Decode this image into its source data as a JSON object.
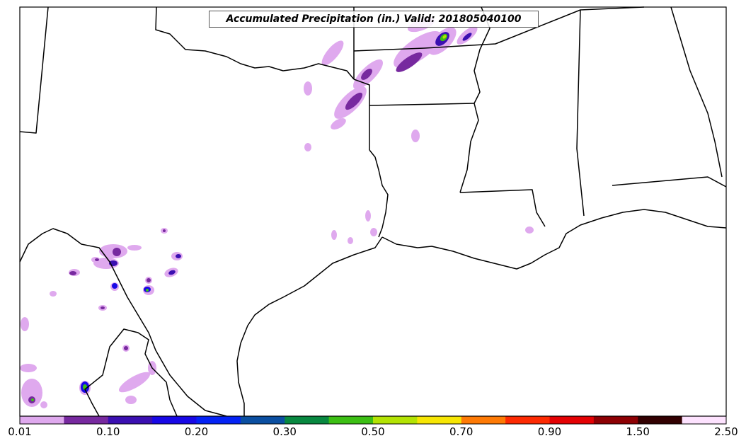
{
  "title": "Accumulated Precipitation (in.) Valid: 201805040100",
  "colorbar": {
    "colors": [
      "#dfa9ee",
      "#77299f",
      "#3b0fb1",
      "#1808e6",
      "#0422f5",
      "#0b4fa1",
      "#088840",
      "#3cbf14",
      "#b3e304",
      "#f7e604",
      "#fe7a05",
      "#fd2a02",
      "#e40103",
      "#8d0003",
      "#320001",
      "#fde2fe"
    ],
    "tick_labels": [
      "0.01",
      "0.10",
      "0.20",
      "0.30",
      "0.50",
      "0.70",
      "0.90",
      "1.50",
      "2.50"
    ]
  },
  "precip_colors": {
    "light": "#dfa9ee",
    "medium": "#77299f",
    "dark": "#3b0fb1",
    "blue": "#1808e6",
    "green": "#3cbf14",
    "yellow": "#b3e304"
  }
}
